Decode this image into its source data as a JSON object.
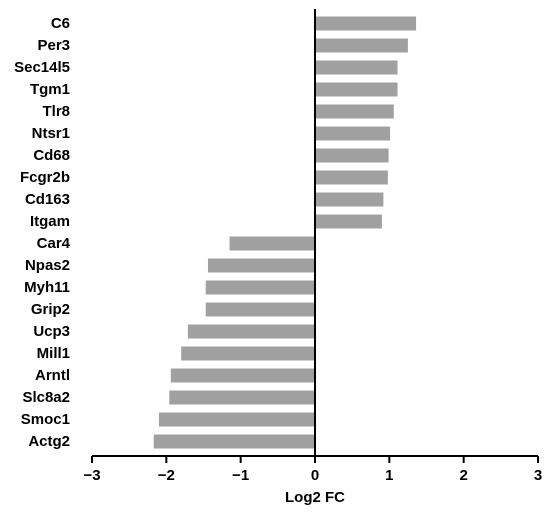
{
  "chart_data": {
    "type": "bar",
    "orientation": "horizontal",
    "categories": [
      "C6",
      "Per3",
      "Sec14l5",
      "Tgm1",
      "Tlr8",
      "Ntsr1",
      "Cd68",
      "Fcgr2b",
      "Cd163",
      "Itgam",
      "Car4",
      "Npas2",
      "Myh11",
      "Grip2",
      "Ucp3",
      "Mill1",
      "Arntl",
      "Slc8a2",
      "Smoc1",
      "Actg2"
    ],
    "values": [
      1.36,
      1.25,
      1.11,
      1.11,
      1.06,
      1.01,
      0.99,
      0.98,
      0.92,
      0.9,
      -1.15,
      -1.44,
      -1.47,
      -1.47,
      -1.71,
      -1.8,
      -1.94,
      -1.96,
      -2.1,
      -2.17
    ],
    "xlabel": "Log2 FC",
    "xlim": [
      -3,
      3
    ],
    "xticks": [
      -3,
      -2,
      -1,
      0,
      1,
      2,
      3
    ],
    "xtick_labels": [
      "−3",
      "−2",
      "−1",
      "0",
      "1",
      "2",
      "3"
    ],
    "grid": false,
    "bar_color": "#a0a0a0",
    "axis_color": "#000000"
  }
}
